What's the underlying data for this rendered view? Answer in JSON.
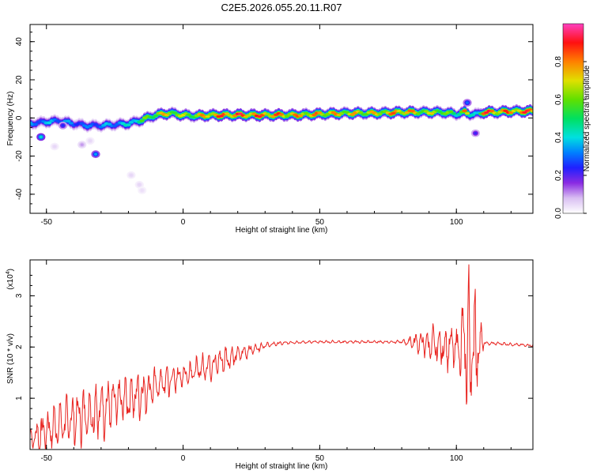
{
  "title": "C2E5.2026.055.20.11.R07",
  "chart_data": [
    {
      "type": "heatmap",
      "xlabel": "Height of straight line (km)",
      "ylabel": "Frequency (Hz)",
      "xlim": [
        -56,
        128
      ],
      "ylim": [
        -50,
        49
      ],
      "xticks": [
        -50,
        0,
        50,
        100
      ],
      "yticks": [
        -40,
        -20,
        0,
        20,
        40
      ],
      "colorbar": {
        "label": "Normalized spectral amplitude",
        "range": [
          0,
          1
        ],
        "ticks": [
          "0.0",
          "0.2",
          "0.4",
          "0.6",
          "0.8"
        ],
        "tick_values": [
          0,
          0.2,
          0.4,
          0.6,
          0.8
        ]
      },
      "ridge": {
        "x": [
          -56,
          -50,
          -45,
          -40,
          -35,
          -30,
          -25,
          -20,
          -15,
          -10,
          -5,
          0,
          5,
          10,
          20,
          30,
          40,
          50,
          60,
          70,
          80,
          90,
          95,
          100,
          103,
          105,
          108,
          110,
          115,
          120,
          128
        ],
        "freq": [
          -3,
          -2,
          -1.5,
          -3,
          -4,
          -4,
          -3.5,
          -3,
          -1,
          1.5,
          2.5,
          1.5,
          1,
          1.5,
          1.5,
          1.5,
          1.5,
          2,
          2.5,
          2.5,
          3,
          3,
          3,
          2,
          3,
          2,
          2,
          3,
          3,
          3.5,
          3.5
        ],
        "amp": [
          0.35,
          0.4,
          0.38,
          0.35,
          0.33,
          0.38,
          0.4,
          0.45,
          0.6,
          0.75,
          0.8,
          0.7,
          0.75,
          0.9,
          0.95,
          0.92,
          0.85,
          0.85,
          0.8,
          0.78,
          0.9,
          0.72,
          0.75,
          0.5,
          0.95,
          0.45,
          0.55,
          0.95,
          0.9,
          0.9,
          0.95
        ]
      },
      "blobs": [
        {
          "x": -52,
          "freq": -10,
          "amp": 0.42
        },
        {
          "x": -44,
          "freq": -4,
          "amp": 0.25
        },
        {
          "x": -37,
          "freq": -14,
          "amp": 0.1
        },
        {
          "x": -32,
          "freq": -19,
          "amp": 0.35
        },
        {
          "x": -34,
          "freq": -12,
          "amp": 0.05
        },
        {
          "x": -19,
          "freq": -30,
          "amp": 0.05
        },
        {
          "x": -16,
          "freq": -35,
          "amp": 0.05
        },
        {
          "x": -15,
          "freq": -38,
          "amp": 0.04
        },
        {
          "x": -47,
          "freq": -15,
          "amp": 0.05
        },
        {
          "x": 107,
          "freq": -8,
          "amp": 0.22
        },
        {
          "x": 104,
          "freq": 8,
          "amp": 0.3
        }
      ]
    },
    {
      "type": "line",
      "xlabel": "Height of straight line (km)",
      "ylabel": "SNR (10 * v/v)",
      "multiplier": "(x10",
      "multiplier_exp": "4",
      "xlim": [
        -56,
        128
      ],
      "ylim": [
        0,
        3.7
      ],
      "xticks": [
        -50,
        0,
        50,
        100
      ],
      "yticks": [
        1,
        2,
        3
      ],
      "color": "#e8231f",
      "envelope": {
        "x": [
          -56,
          -50,
          -45,
          -40,
          -35,
          -30,
          -25,
          -20,
          -15,
          -10,
          -5,
          0,
          5,
          10,
          15,
          20,
          25,
          30,
          35,
          40,
          50,
          60,
          70,
          80,
          85,
          90,
          95,
          100,
          103,
          105,
          107,
          110,
          115,
          120,
          128
        ],
        "mean": [
          0.2,
          0.35,
          0.5,
          0.6,
          0.7,
          0.8,
          0.9,
          1.0,
          1.1,
          1.25,
          1.35,
          1.45,
          1.55,
          1.65,
          1.75,
          1.85,
          1.95,
          2.03,
          2.07,
          2.09,
          2.1,
          2.1,
          2.1,
          2.1,
          2.1,
          2.05,
          2.0,
          2.0,
          2.0,
          2.0,
          2.05,
          2.07,
          2.07,
          2.05,
          2.03
        ],
        "amp": [
          0.25,
          0.55,
          0.5,
          0.55,
          0.6,
          0.65,
          0.55,
          0.55,
          0.5,
          0.35,
          0.4,
          0.3,
          0.25,
          0.3,
          0.3,
          0.2,
          0.12,
          0.06,
          0.04,
          0.03,
          0.03,
          0.03,
          0.03,
          0.03,
          0.2,
          0.35,
          0.45,
          0.5,
          1.2,
          1.6,
          1.3,
          0.05,
          0.03,
          0.03,
          0.03
        ]
      }
    }
  ]
}
